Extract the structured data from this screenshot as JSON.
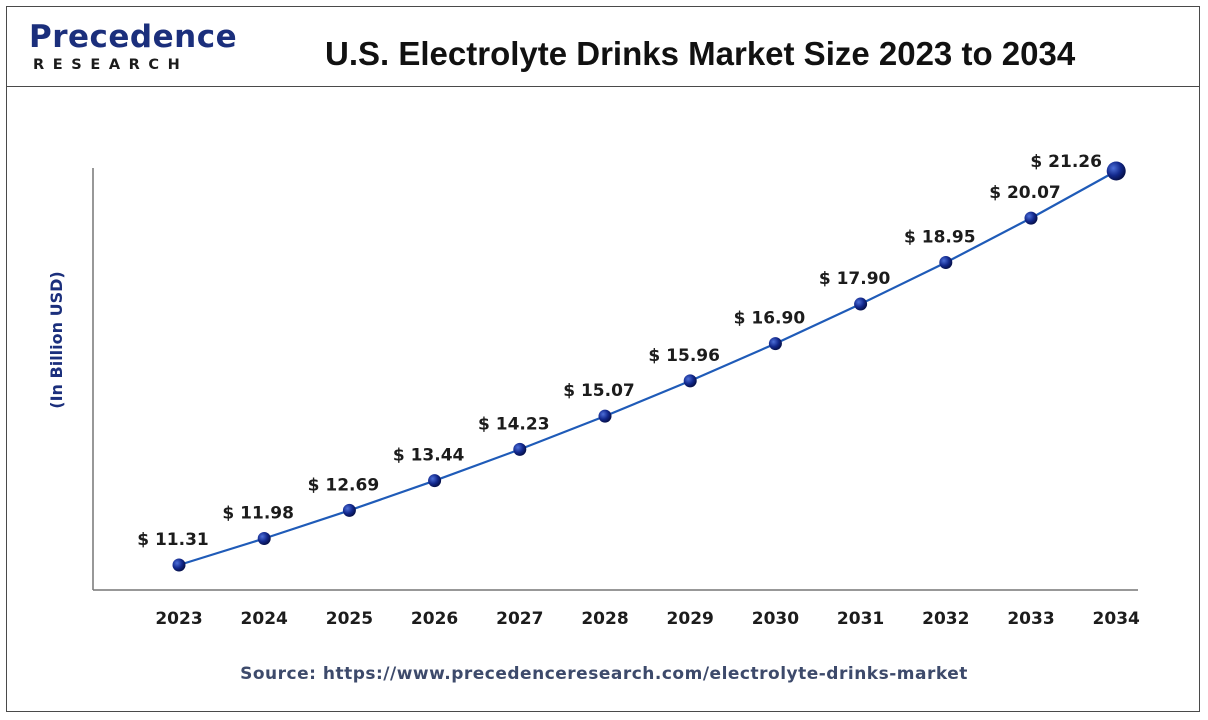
{
  "header": {
    "logo_main": "Precedence",
    "logo_sub": "RESEARCH",
    "title": "U.S. Electrolyte Drinks Market Size 2023 to 2034"
  },
  "chart_data": {
    "type": "line",
    "title": "U.S. Electrolyte Drinks Market Size 2023 to 2034",
    "xlabel": "",
    "ylabel": "(In Billion USD)",
    "categories": [
      "2023",
      "2024",
      "2025",
      "2026",
      "2027",
      "2028",
      "2029",
      "2030",
      "2031",
      "2032",
      "2033",
      "2034"
    ],
    "values": [
      11.31,
      11.98,
      12.69,
      13.44,
      14.23,
      15.07,
      15.96,
      16.9,
      17.9,
      18.95,
      20.07,
      21.26
    ],
    "value_labels": [
      "$ 11.31",
      "$ 11.98",
      "$ 12.69",
      "$ 13.44",
      "$ 14.23",
      "$ 15.07",
      "$ 15.96",
      "$ 16.90",
      "$ 17.90",
      "$ 18.95",
      "$ 20.07",
      "$ 21.26"
    ],
    "grid": false,
    "line_color": "#1f5bb8",
    "marker_color": "#0b1f7a"
  },
  "footer": {
    "source": "Source: https://www.precedenceresearch.com/electrolyte-drinks-market"
  }
}
